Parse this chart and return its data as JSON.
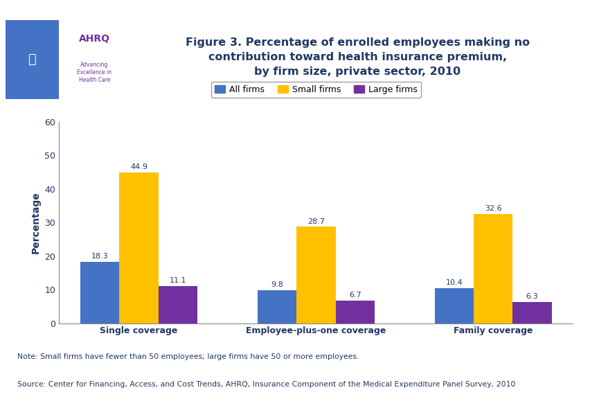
{
  "title": "Figure 3. Percentage of enrolled employees making no\ncontribution toward health insurance premium,\nby firm size, private sector, 2010",
  "categories": [
    "Single coverage",
    "Employee-plus-one coverage",
    "Family coverage"
  ],
  "series": {
    "All firms": [
      18.3,
      9.8,
      10.4
    ],
    "Small firms": [
      44.9,
      28.7,
      32.6
    ],
    "Large firms": [
      11.1,
      6.7,
      6.3
    ]
  },
  "colors": {
    "All firms": "#4472C4",
    "Small firms": "#FFC000",
    "Large firms": "#7030A0"
  },
  "ylabel": "Percentage",
  "ylim": [
    0,
    60
  ],
  "yticks": [
    0,
    10,
    20,
    30,
    40,
    50,
    60
  ],
  "bar_width": 0.22,
  "legend_labels": [
    "All firms",
    "Small firms",
    "Large firms"
  ],
  "note_line1": "Note: Small firms have fewer than 50 employees; large firms have 50 or more employees.",
  "note_line2": "Source: Center for Financing, Access, and Cost Trends, AHRQ, Insurance Component of the Medical Expenditure Panel Survey, 2010",
  "title_color": "#1F3864",
  "axis_label_color": "#1F3864",
  "tick_label_color": "#1F3864",
  "note_color": "#1F3864",
  "top_bar_color": "#00008B",
  "separator_color": "#00008B",
  "chart_bg": "#FFFFFF",
  "outer_bg": "#FFFFFF",
  "value_label_color": "#1F3864"
}
